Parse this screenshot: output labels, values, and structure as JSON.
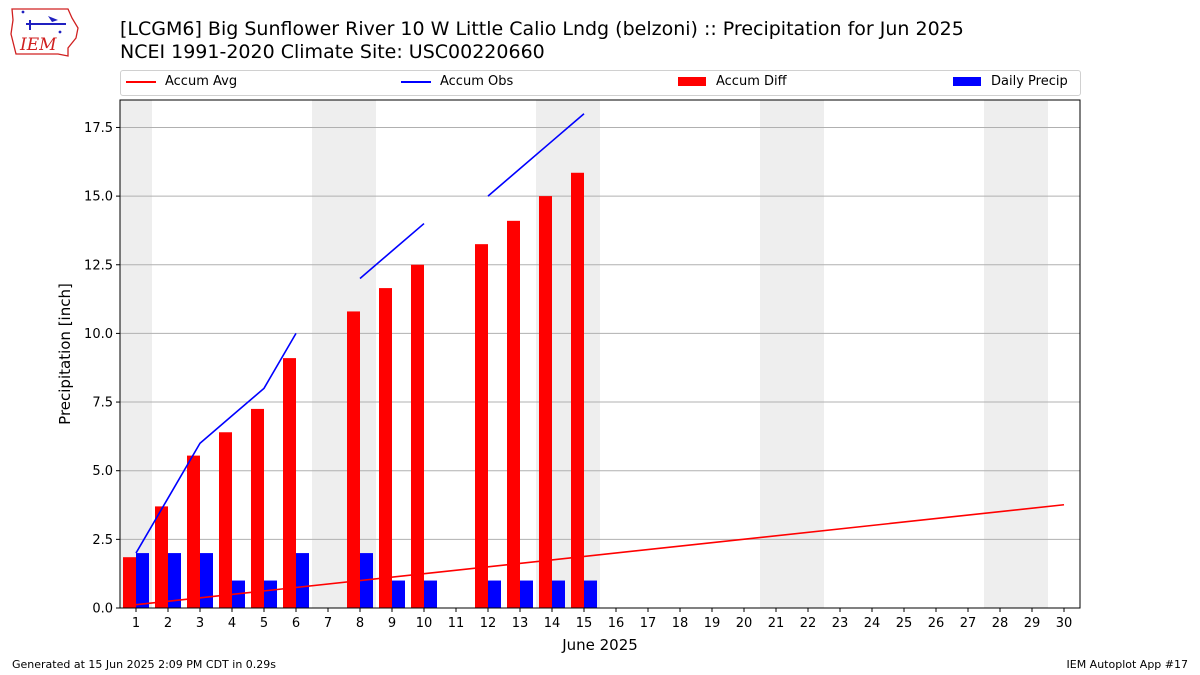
{
  "header": {
    "title_line1": "[LCGM6] Big Sunflower River 10 W Little Calio Lndg (belzoni) :: Precipitation for Jun 2025",
    "title_line2": "NCEI 1991-2020 Climate Site: USC00220660"
  },
  "logo": {
    "text": "IEM",
    "icon": "iowa-state-map-icon"
  },
  "footer": {
    "left": "Generated at 15 Jun 2025 2:09 PM CDT in 0.29s",
    "right": "IEM Autoplot App #17"
  },
  "colors": {
    "accum_avg": "#ff0000",
    "accum_obs": "#0000ff",
    "accum_diff": "#ff0000",
    "daily_precip": "#0000ff",
    "weekend_shade": "#eeeeee",
    "grid": "#b0b0b0"
  },
  "chart_data": {
    "type": "bar",
    "xlabel": "June 2025",
    "ylabel": "Precipitation [inch]",
    "ylim": [
      0,
      18.5
    ],
    "yticks": [
      "0.0",
      "2.5",
      "5.0",
      "7.5",
      "10.0",
      "12.5",
      "15.0",
      "17.5"
    ],
    "xticks": [
      "1",
      "2",
      "3",
      "4",
      "5",
      "6",
      "7",
      "8",
      "9",
      "10",
      "11",
      "12",
      "13",
      "14",
      "15",
      "16",
      "17",
      "18",
      "19",
      "20",
      "21",
      "22",
      "23",
      "24",
      "25",
      "26",
      "27",
      "28",
      "29",
      "30"
    ],
    "grid": "horizontal",
    "legend_position": "top",
    "weekend_shaded_days": [
      1,
      7,
      8,
      14,
      15,
      21,
      22,
      28,
      29
    ],
    "series": [
      {
        "name": "Accum Avg",
        "kind": "line",
        "x": [
          1,
          30
        ],
        "values": [
          0.12,
          3.76
        ]
      },
      {
        "name": "Accum Obs",
        "kind": "line",
        "segments": [
          {
            "x": [
              1,
              2,
              3,
              4,
              5,
              6
            ],
            "values": [
              2,
              4,
              6,
              7,
              8,
              10
            ]
          },
          {
            "x": [
              8,
              9,
              10
            ],
            "values": [
              12,
              13,
              14
            ]
          },
          {
            "x": [
              12,
              13,
              14,
              15
            ],
            "values": [
              15,
              16,
              17,
              18
            ]
          }
        ]
      },
      {
        "name": "Accum Diff",
        "kind": "bar",
        "x": [
          1,
          2,
          3,
          4,
          5,
          6,
          8,
          9,
          10,
          12,
          13,
          14,
          15
        ],
        "values": [
          1.85,
          3.7,
          5.55,
          6.4,
          7.25,
          9.1,
          10.8,
          11.65,
          12.5,
          13.25,
          14.1,
          15.0,
          15.85
        ]
      },
      {
        "name": "Daily Precip",
        "kind": "bar",
        "x": [
          1,
          2,
          3,
          4,
          5,
          6,
          8,
          9,
          10,
          12,
          13,
          14,
          15
        ],
        "values": [
          2,
          2,
          2,
          1,
          1,
          2,
          2,
          1,
          1,
          1,
          1,
          1,
          1
        ]
      }
    ]
  }
}
